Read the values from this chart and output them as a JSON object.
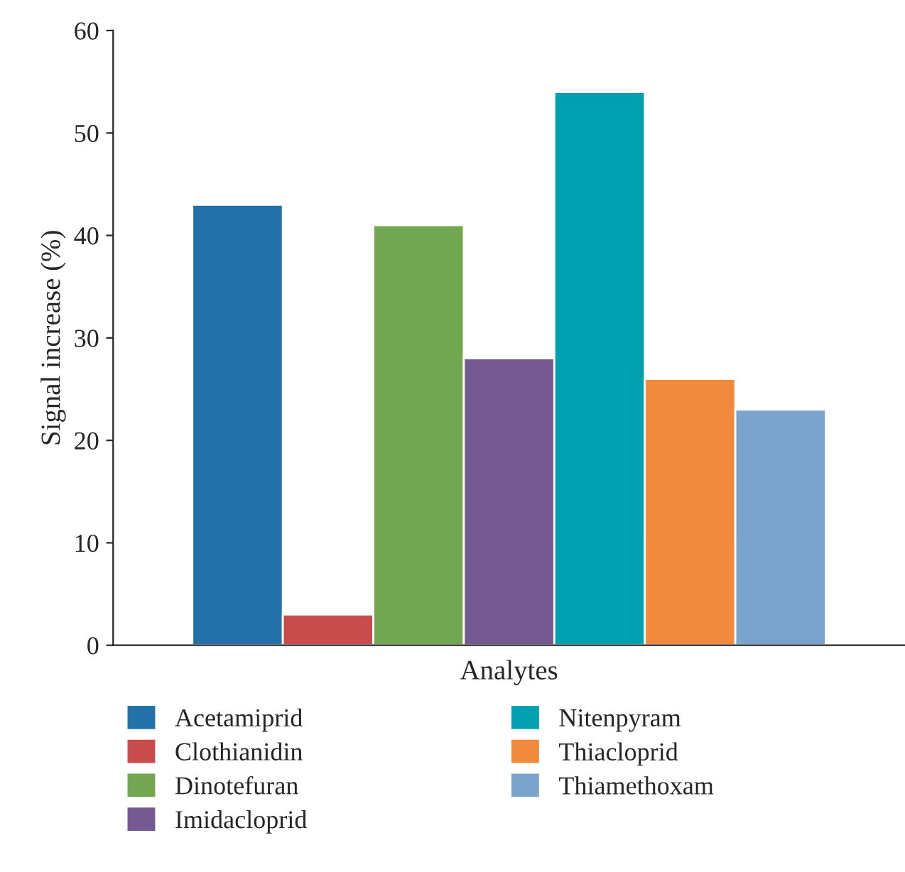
{
  "chart_data": {
    "type": "bar",
    "xlabel": "Analytes",
    "ylabel": "Signal increase (%)",
    "categories": [
      null
    ],
    "series": [
      {
        "name": "Acetamiprid",
        "color": "#2272a9",
        "values": [
          43
        ]
      },
      {
        "name": "Clothianidin",
        "color": "#c94c4c",
        "values": [
          3
        ]
      },
      {
        "name": "Dinotefuran",
        "color": "#73a651",
        "values": [
          41
        ]
      },
      {
        "name": "Imidacloprid",
        "color": "#755a92",
        "values": [
          28
        ]
      },
      {
        "name": "Nitenpyram",
        "color": "#00a0b1",
        "values": [
          54
        ]
      },
      {
        "name": "Thiacloprid",
        "color": "#f28a3d",
        "values": [
          26
        ]
      },
      {
        "name": "Thiamethoxam",
        "color": "#7ba4cd",
        "values": [
          23
        ]
      }
    ],
    "ylim": [
      0,
      60
    ],
    "yticks": [
      0,
      10,
      20,
      30,
      40,
      50,
      60
    ],
    "grid": false,
    "legend": "bottom"
  }
}
